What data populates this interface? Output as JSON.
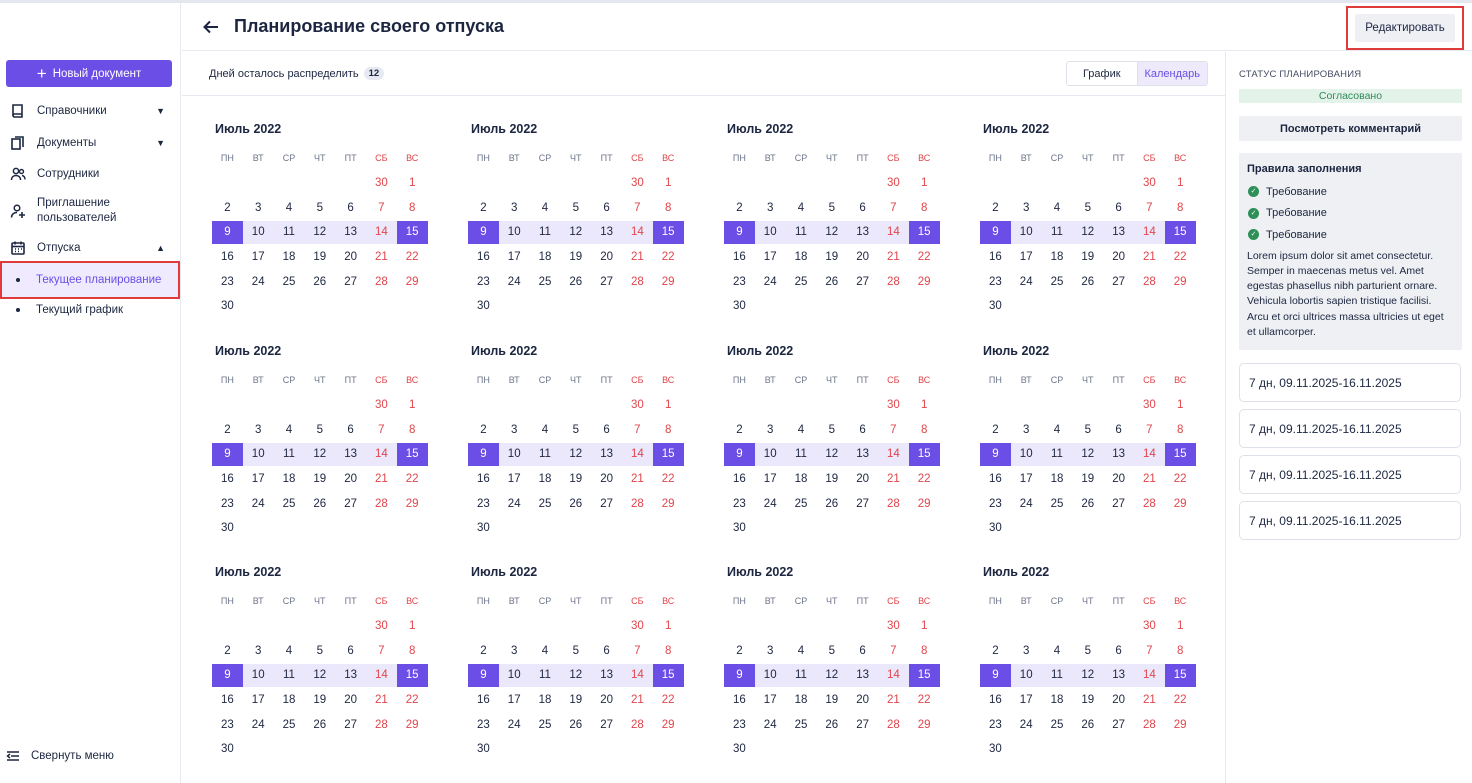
{
  "sidebar": {
    "new_doc_label": "Новый документ",
    "items": [
      {
        "label": "Справочники",
        "icon": "book-icon",
        "chevron": "down"
      },
      {
        "label": "Документы",
        "icon": "documents-icon",
        "chevron": "down"
      },
      {
        "label": "Сотрудники",
        "icon": "people-icon"
      },
      {
        "label": "Приглашение пользователей",
        "icon": "invite-user-icon"
      },
      {
        "label": "Отпуска",
        "icon": "calendar-icon",
        "chevron": "up"
      }
    ],
    "sub_items": [
      {
        "label": "Текущее планирование",
        "active": true
      },
      {
        "label": "Текущий график",
        "active": false
      }
    ],
    "collapse_label": "Свернуть меню"
  },
  "header": {
    "title": "Планирование своего отпуска",
    "edit_label": "Редактировать"
  },
  "toolbar": {
    "days_left_label": "Дней осталось распределить",
    "days_left_count": "12",
    "view_graph": "График",
    "view_calendar": "Календарь",
    "active_view": "calendar"
  },
  "calendar": {
    "month_title": "Июль 2022",
    "weekdays": [
      "ПН",
      "ВТ",
      "СР",
      "ЧТ",
      "ПТ",
      "СБ",
      "ВС"
    ],
    "weeks": [
      [
        "",
        "",
        "",
        "",
        "",
        "30",
        "1"
      ],
      [
        "2",
        "3",
        "4",
        "5",
        "6",
        "7",
        "8"
      ],
      [
        "9",
        "10",
        "11",
        "12",
        "13",
        "14",
        "15"
      ],
      [
        "16",
        "17",
        "18",
        "19",
        "20",
        "21",
        "22"
      ],
      [
        "23",
        "24",
        "25",
        "26",
        "27",
        "28",
        "29"
      ],
      [
        "30",
        "",
        "",
        "",
        "",
        "",
        ""
      ]
    ],
    "selected_range": {
      "start": "9",
      "end": "15"
    },
    "count": 12
  },
  "right_panel": {
    "status_label": "СТАТУС ПЛАНИРОВАНИЯ",
    "status_value": "Согласовано",
    "comment_button": "Посмотреть комментарий",
    "rules_title": "Правила заполнения",
    "requirements": [
      "Требование",
      "Требование",
      "Требование"
    ],
    "rules_text": "Lorem ipsum dolor sit amet consectetur. Semper in maecenas metus vel. Amet egestas phasellus nibh parturient ornare. Vehicula lobortis sapien tristique facilisi. Arcu et orci ultrices massa ultricies ut eget et ullamcorper.",
    "periods": [
      "7 дн, 09.11.2025-16.11.2025",
      "7 дн, 09.11.2025-16.11.2025",
      "7 дн, 09.11.2025-16.11.2025",
      "7 дн, 09.11.2025-16.11.2025"
    ]
  },
  "colors": {
    "accent": "#6a4ee6",
    "weekend": "#e0454a",
    "status_green": "#2c8a57",
    "highlight_border": "#e03b3b"
  }
}
